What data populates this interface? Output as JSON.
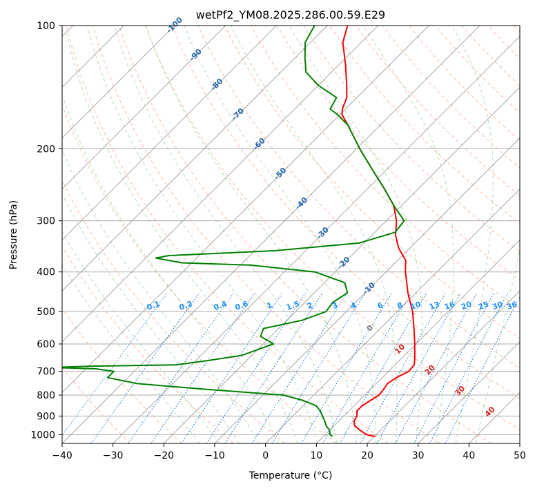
{
  "chart_data": {
    "type": "line",
    "title": "wetPf2_YM08.2025.286.00.59.E29",
    "xlabel": "Temperature (°C)",
    "ylabel": "Pressure (hPa)",
    "xlim": [
      -40,
      50
    ],
    "ylim": [
      1050,
      100
    ],
    "y_scale": "log",
    "x_ticks": [
      "−40",
      "−30",
      "−20",
      "−10",
      "0",
      "10",
      "20",
      "30",
      "40",
      "50"
    ],
    "y_ticks": [
      "100",
      "200",
      "300",
      "400",
      "500",
      "600",
      "700",
      "800",
      "900",
      "1000"
    ],
    "grid": true,
    "skew": true,
    "colors": {
      "temperature": "#ff0000",
      "dewpoint": "#008000",
      "dry_adiabat": "#f4a582",
      "moist_adiabat": "#74c476",
      "mixing_ratio": "#2a7fd4",
      "isotherm": "#999999"
    },
    "isotherm_labels": [
      "-100",
      "-90",
      "-80",
      "-70",
      "-60",
      "-50",
      "-40",
      "-30",
      "-20",
      "-10"
    ],
    "mixing_ratio_labels": [
      "0.1",
      "0.2",
      "0.4",
      "0.6",
      "1",
      "1.5",
      "2",
      "3",
      "4",
      "6",
      "8",
      "10",
      "13",
      "16",
      "20",
      "25",
      "30",
      "36"
    ],
    "hot_isotherm_labels": [
      "0",
      "10",
      "20",
      "30",
      "40"
    ],
    "series": [
      {
        "key": "temperature",
        "points": [
          [
            1010,
            20.2
          ],
          [
            1000,
            18.2
          ],
          [
            975,
            16.0
          ],
          [
            950,
            14.0
          ],
          [
            925,
            13.0
          ],
          [
            900,
            12.6
          ],
          [
            875,
            11.6
          ],
          [
            850,
            11.6
          ],
          [
            800,
            12.8
          ],
          [
            775,
            12.6
          ],
          [
            750,
            12.2
          ],
          [
            725,
            12.8
          ],
          [
            700,
            14.0
          ],
          [
            675,
            13.8
          ],
          [
            650,
            12.6
          ],
          [
            600,
            9.8
          ],
          [
            550,
            6.6
          ],
          [
            500,
            3.0
          ],
          [
            450,
            -1.6
          ],
          [
            400,
            -6.2
          ],
          [
            375,
            -8.4
          ],
          [
            350,
            -12.2
          ],
          [
            325,
            -15.4
          ],
          [
            300,
            -18.0
          ],
          [
            275,
            -21.6
          ],
          [
            250,
            -26.8
          ],
          [
            225,
            -32.8
          ],
          [
            200,
            -39.4
          ],
          [
            175,
            -46.4
          ],
          [
            165,
            -49.6
          ],
          [
            160,
            -50.6
          ],
          [
            150,
            -52.0
          ],
          [
            140,
            -54.4
          ],
          [
            125,
            -58.6
          ],
          [
            110,
            -63.6
          ],
          [
            100,
            -66.0
          ]
        ]
      },
      {
        "key": "dewpoint",
        "points": [
          [
            1010,
            11.8
          ],
          [
            1000,
            11.0
          ],
          [
            975,
            10.0
          ],
          [
            950,
            8.4
          ],
          [
            925,
            7.2
          ],
          [
            900,
            5.8
          ],
          [
            875,
            4.4
          ],
          [
            850,
            2.6
          ],
          [
            825,
            -1.0
          ],
          [
            800,
            -6.0
          ],
          [
            775,
            -22.0
          ],
          [
            750,
            -37.0
          ],
          [
            725,
            -44.0
          ],
          [
            700,
            -44.0
          ],
          [
            690,
            -48.0
          ],
          [
            685,
            -57.0
          ],
          [
            680,
            -50.0
          ],
          [
            675,
            -33.0
          ],
          [
            660,
            -28.0
          ],
          [
            640,
            -22.0
          ],
          [
            600,
            -18.0
          ],
          [
            575,
            -22.0
          ],
          [
            550,
            -23.0
          ],
          [
            525,
            -17.0
          ],
          [
            500,
            -14.0
          ],
          [
            475,
            -14.5
          ],
          [
            450,
            -13.5
          ],
          [
            425,
            -16.0
          ],
          [
            400,
            -24.0
          ],
          [
            385,
            -38.0
          ],
          [
            380,
            -52.0
          ],
          [
            370,
            -58.0
          ],
          [
            365,
            -56.0
          ],
          [
            355,
            -36.0
          ],
          [
            340,
            -21.0
          ],
          [
            320,
            -16.0
          ],
          [
            300,
            -16.5
          ],
          [
            275,
            -21.6
          ],
          [
            250,
            -26.8
          ],
          [
            225,
            -32.8
          ],
          [
            200,
            -39.4
          ],
          [
            175,
            -46.4
          ],
          [
            165,
            -50.5
          ],
          [
            160,
            -53.0
          ],
          [
            150,
            -54.0
          ],
          [
            140,
            -60.0
          ],
          [
            130,
            -65.0
          ],
          [
            120,
            -68.0
          ],
          [
            110,
            -71.0
          ],
          [
            100,
            -72.5
          ]
        ]
      }
    ]
  }
}
